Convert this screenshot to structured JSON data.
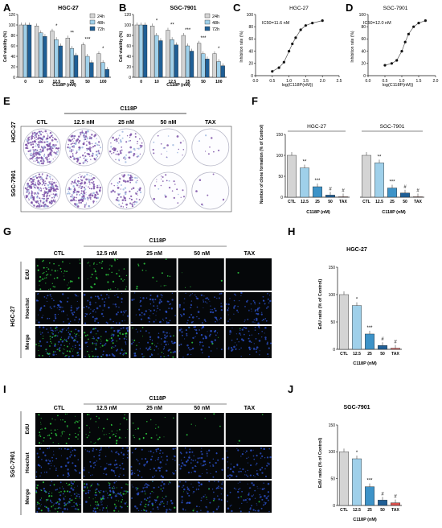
{
  "panel_letters": [
    "A",
    "B",
    "C",
    "D",
    "E",
    "F",
    "G",
    "H",
    "I",
    "J"
  ],
  "colors": {
    "bar_grey": "#d4d4d4",
    "bar_light_blue": "#9fd0ea",
    "bar_mid_blue": "#3d93c8",
    "bar_dark_blue": "#1f5f96",
    "bar_navy": "#1d3f66",
    "bar_red": "#d9534f",
    "micrograph_bg": "#050709",
    "edu_green": "#2ecc40",
    "hoechst_blue": "#2f56d6",
    "colony_purple": "#7a4fa6"
  },
  "panel_A": {
    "title": "HGC-27",
    "legend": [
      "24h",
      "48h",
      "72h"
    ],
    "chart_data": {
      "type": "bar",
      "title": "HGC-27",
      "xlabel": "C118P (nM)",
      "ylabel": "Cell viability (%)",
      "ylim": [
        0,
        120
      ],
      "yticks": [
        "0",
        "20",
        "40",
        "60",
        "80",
        "100",
        "120"
      ],
      "categories": [
        "0",
        "10",
        "12.5",
        "25",
        "50",
        "100"
      ],
      "series": [
        {
          "name": "24h",
          "values": [
            100,
            98,
            88,
            75,
            62,
            45
          ]
        },
        {
          "name": "48h",
          "values": [
            100,
            85,
            72,
            55,
            40,
            28
          ]
        },
        {
          "name": "72h",
          "values": [
            100,
            78,
            60,
            42,
            28,
            15
          ]
        }
      ],
      "annotations": [
        "",
        "",
        "*",
        "**",
        "***",
        "*"
      ]
    }
  },
  "panel_B": {
    "title": "SGC-7901",
    "legend": [
      "24h",
      "48h",
      "72h"
    ],
    "chart_data": {
      "type": "bar",
      "title": "SGC-7901",
      "xlabel": "C118P (nM)",
      "ylabel": "Cell viability (%)",
      "ylim": [
        0,
        120
      ],
      "yticks": [
        "0",
        "20",
        "40",
        "60",
        "80",
        "100",
        "120"
      ],
      "categories": [
        "0",
        "10",
        "12.5",
        "25",
        "50",
        "100"
      ],
      "series": [
        {
          "name": "24h",
          "values": [
            100,
            98,
            90,
            80,
            65,
            45
          ]
        },
        {
          "name": "48h",
          "values": [
            100,
            80,
            72,
            60,
            45,
            30
          ]
        },
        {
          "name": "72h",
          "values": [
            100,
            70,
            62,
            50,
            35,
            22
          ]
        }
      ],
      "annotations": [
        "",
        "*",
        "**",
        "***",
        "***",
        "*"
      ]
    }
  },
  "panel_C": {
    "title": "HGC-27",
    "ic50": "IC50=11.6 nM",
    "chart_data": {
      "type": "scatter",
      "title": "HGC-27",
      "xlabel": "log(C118P(nM))",
      "ylabel": "Inhibition rate (%)",
      "xlim": [
        0,
        2.5
      ],
      "ylim": [
        0,
        100
      ],
      "xticks": [
        "0.0",
        "0.5",
        "1.0",
        "1.5",
        "2.0",
        "2.5"
      ],
      "yticks": [
        "0",
        "20",
        "40",
        "60",
        "80",
        "100"
      ],
      "x": [
        0.5,
        0.7,
        0.85,
        1.0,
        1.1,
        1.2,
        1.35,
        1.5,
        1.7,
        2.0
      ],
      "y": [
        7,
        13,
        22,
        40,
        52,
        62,
        75,
        82,
        86,
        90
      ]
    }
  },
  "panel_D": {
    "title": "SGC-7901",
    "ic50": "IC50=12.0 nM",
    "chart_data": {
      "type": "scatter",
      "title": "SGC-7901",
      "xlabel": "log(C118P(nM))",
      "ylabel": "Inhibition rate (%)",
      "xlim": [
        0,
        2.0
      ],
      "ylim": [
        0,
        100
      ],
      "xticks": [
        "0.0",
        "0.5",
        "1.0",
        "1.5",
        "2.0"
      ],
      "yticks": [
        "0",
        "20",
        "40",
        "60",
        "80",
        "100"
      ],
      "x": [
        0.5,
        0.7,
        0.85,
        1.0,
        1.1,
        1.2,
        1.35,
        1.5,
        1.7
      ],
      "y": [
        17,
        20,
        25,
        40,
        55,
        68,
        80,
        86,
        90
      ]
    }
  },
  "panel_E": {
    "header": "C118P",
    "columns": [
      "CTL",
      "12.5 nM",
      "25 nM",
      "50 nM",
      "TAX"
    ],
    "rows": [
      "HGC-27",
      "SGC-7901"
    ],
    "densities": [
      [
        1.0,
        0.65,
        0.28,
        0.08,
        0.03
      ],
      [
        1.0,
        0.7,
        0.35,
        0.1,
        0.03
      ]
    ]
  },
  "panel_F": {
    "group_titles": [
      "HGC-27",
      "SGC-7901"
    ],
    "chart_data": {
      "type": "bar",
      "ylabel": "Number of clone formation (% of Control)",
      "xlabel": "C118P (nM)",
      "ylim": [
        0,
        150
      ],
      "yticks": [
        "0",
        "50",
        "100",
        "150"
      ],
      "categories": [
        "CTL",
        "12.5",
        "25",
        "50",
        "TAX"
      ],
      "series": [
        {
          "name": "HGC-27",
          "values": [
            100,
            70,
            25,
            5,
            1
          ],
          "annotations": [
            "",
            "**",
            "***",
            "#",
            "#"
          ]
        },
        {
          "name": "SGC-7901",
          "values": [
            100,
            82,
            22,
            10,
            1
          ],
          "annotations": [
            "",
            "**",
            "***",
            "#",
            "#"
          ]
        }
      ]
    }
  },
  "panel_G": {
    "header": "C118P",
    "columns": [
      "CTL",
      "12.5 nM",
      "25 nM",
      "50 nM",
      "TAX"
    ],
    "cell_line": "HGC-27",
    "stains": [
      "EdU",
      "Hoechst",
      "Merge"
    ]
  },
  "panel_H": {
    "title": "HGC-27",
    "chart_data": {
      "type": "bar",
      "title": "HGC-27",
      "ylabel": "EdU ratio (% of Control)",
      "xlabel": "C118P (nM)",
      "ylim": [
        0,
        150
      ],
      "yticks": [
        "0",
        "50",
        "100",
        "150"
      ],
      "categories": [
        "CTL",
        "12.5",
        "25",
        "50",
        "TAX"
      ],
      "values": [
        100,
        80,
        28,
        7,
        2
      ],
      "annotations": [
        "",
        "*",
        "***",
        "#",
        "#"
      ]
    }
  },
  "panel_I": {
    "header": "C118P",
    "columns": [
      "CTL",
      "12.5 nM",
      "25 nM",
      "50 nM",
      "TAX"
    ],
    "cell_line": "SGC-7901",
    "stains": [
      "EdU",
      "Hoechst",
      "Merge"
    ]
  },
  "panel_J": {
    "title": "SGC-7901",
    "chart_data": {
      "type": "bar",
      "title": "SGC-7901",
      "ylabel": "EdU ratio (% of Control)",
      "xlabel": "C118P (nM)",
      "ylim": [
        0,
        150
      ],
      "yticks": [
        "0",
        "50",
        "100",
        "150"
      ],
      "categories": [
        "CTL",
        "12.5",
        "25",
        "50",
        "TAX"
      ],
      "values": [
        100,
        87,
        35,
        10,
        5
      ],
      "annotations": [
        "",
        "*",
        "***",
        "#",
        "#"
      ]
    }
  }
}
